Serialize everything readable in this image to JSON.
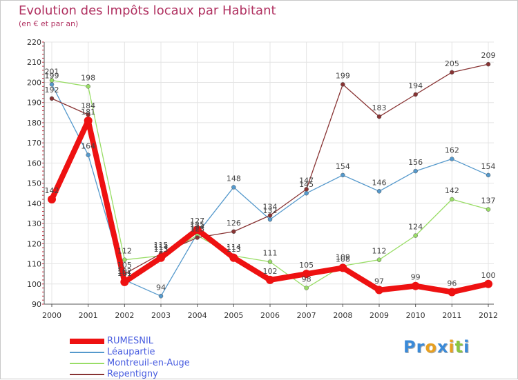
{
  "header": {
    "title": "Evolution des Impôts locaux par Habitant",
    "subtitle": "(en € et par an)"
  },
  "logo": {
    "letters": [
      {
        "ch": "P",
        "color": "#3a8ad8"
      },
      {
        "ch": "r",
        "color": "#3a8ad8"
      },
      {
        "ch": "o",
        "color": "#e8a020"
      },
      {
        "ch": "x",
        "color": "#3a8ad8"
      },
      {
        "ch": "i",
        "color": "#e8a020"
      },
      {
        "ch": "t",
        "color": "#8ac640"
      },
      {
        "ch": "i",
        "color": "#3a8ad8"
      }
    ]
  },
  "chart_data": {
    "type": "line",
    "title": "Evolution des Impôts locaux par Habitant",
    "subtitle": "(en € et par an)",
    "xlabel": "",
    "ylabel": "",
    "ylim": [
      90,
      220
    ],
    "yticks": [
      90,
      100,
      110,
      120,
      130,
      140,
      150,
      160,
      170,
      180,
      190,
      200,
      210,
      220
    ],
    "categories": [
      "2000",
      "2001",
      "2002",
      "2003",
      "2004",
      "2005",
      "2006",
      "2007",
      "2008",
      "2009",
      "2010",
      "2011",
      "2012"
    ],
    "grid": true,
    "legend_position": "bottom-left",
    "series": [
      {
        "name": "RUMESNIL",
        "color": "#ee1111",
        "thick": true,
        "values": [
          142,
          181,
          101,
          113,
          127,
          113,
          102,
          105,
          108,
          97,
          99,
          96,
          100
        ]
      },
      {
        "name": "Léaupartie",
        "color": "#5599cc",
        "thick": false,
        "values": [
          199,
          164,
          102,
          94,
          125,
          148,
          132,
          145,
          154,
          146,
          156,
          162,
          154
        ]
      },
      {
        "name": "Montreuil-en-Auge",
        "color": "#99dd66",
        "thick": false,
        "values": [
          201,
          198,
          112,
          114,
          124,
          114,
          111,
          98,
          109,
          112,
          124,
          142,
          137
        ]
      },
      {
        "name": "Repentigny",
        "color": "#883333",
        "thick": false,
        "values": [
          192,
          184,
          105,
          115,
          123,
          126,
          134,
          147,
          199,
          183,
          194,
          205,
          209
        ]
      }
    ]
  }
}
